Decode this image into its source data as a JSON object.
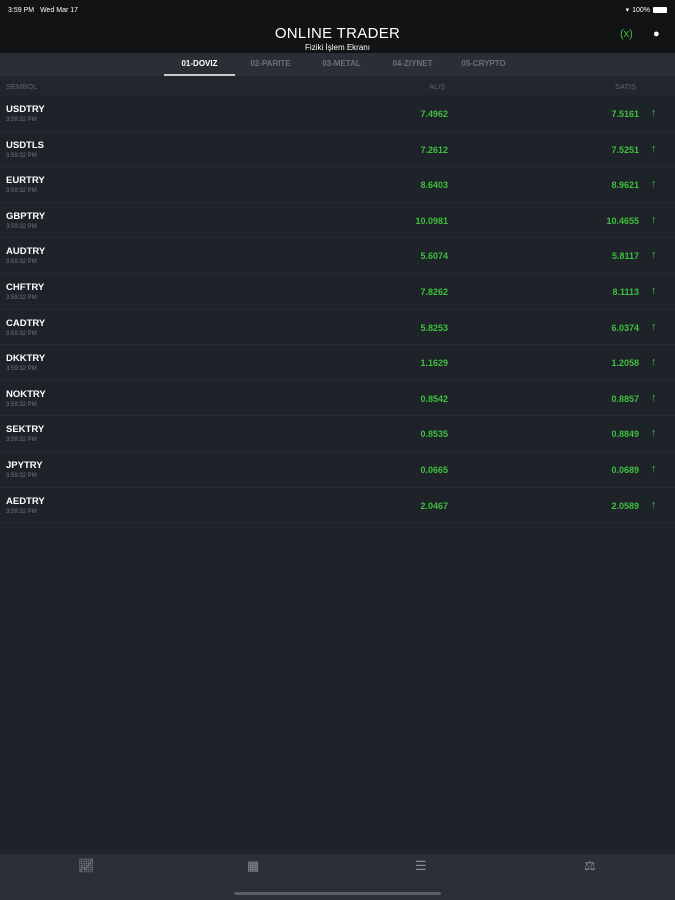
{
  "status": {
    "time": "3:59 PM",
    "date": "Wed Mar 17",
    "battery": "100%"
  },
  "header": {
    "title": "ONLINE TRADER",
    "subtitle": "Fiziki İşlem Ekranı"
  },
  "tabs": [
    {
      "label": "01-DOVIZ",
      "active": true
    },
    {
      "label": "02-PARITE"
    },
    {
      "label": "03-METAL"
    },
    {
      "label": "04-ZIYNET"
    },
    {
      "label": "05-CRYPTO"
    }
  ],
  "columns": {
    "symbol": "SEMBOL",
    "bid": "ALIŞ",
    "ask": "SATIŞ"
  },
  "accent": "#3fbf3f",
  "rows": [
    {
      "symbol": "USDTRY",
      "time": "3:59:32 PM",
      "bid": "7.4962",
      "ask": "7.5161",
      "trend": "up"
    },
    {
      "symbol": "USDTLS",
      "time": "3:59:32 PM",
      "bid": "7.2612",
      "ask": "7.5251",
      "trend": "up"
    },
    {
      "symbol": "EURTRY",
      "time": "3:59:32 PM",
      "bid": "8.6403",
      "ask": "8.9621",
      "trend": "up"
    },
    {
      "symbol": "GBPTRY",
      "time": "3:59:32 PM",
      "bid": "10.0981",
      "ask": "10.4655",
      "trend": "up"
    },
    {
      "symbol": "AUDTRY",
      "time": "3:59:32 PM",
      "bid": "5.6074",
      "ask": "5.8117",
      "trend": "up"
    },
    {
      "symbol": "CHFTRY",
      "time": "3:59:32 PM",
      "bid": "7.8262",
      "ask": "8.1113",
      "trend": "up"
    },
    {
      "symbol": "CADTRY",
      "time": "3:59:32 PM",
      "bid": "5.8253",
      "ask": "6.0374",
      "trend": "up"
    },
    {
      "symbol": "DKKTRY",
      "time": "3:59:32 PM",
      "bid": "1.1629",
      "ask": "1.2058",
      "trend": "up"
    },
    {
      "symbol": "NOKTRY",
      "time": "3:59:32 PM",
      "bid": "0.8542",
      "ask": "0.8857",
      "trend": "up"
    },
    {
      "symbol": "SEKTRY",
      "time": "3:59:32 PM",
      "bid": "0.8535",
      "ask": "0.8849",
      "trend": "up"
    },
    {
      "symbol": "JPYTRY",
      "time": "3:59:32 PM",
      "bid": "0.0665",
      "ask": "0.0689",
      "trend": "up"
    },
    {
      "symbol": "AEDTRY",
      "time": "3:59:32 PM",
      "bid": "2.0467",
      "ask": "2.0589",
      "trend": "up"
    }
  ],
  "nav": [
    "chart-icon",
    "calendar-icon",
    "list-icon",
    "scale-icon"
  ]
}
